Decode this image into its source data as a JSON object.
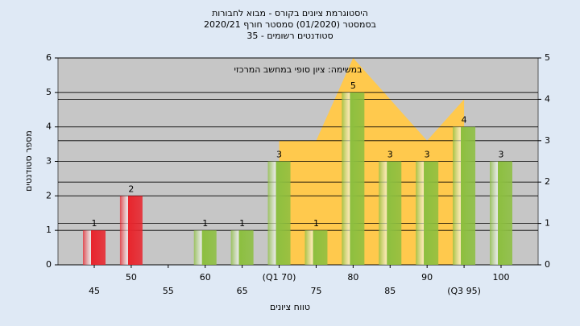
{
  "chart_data": {
    "type": "bar",
    "title": [
      "היסטוגרמת ציונים בקורס - מבוא לחבורות",
      "בסמסטר (01/2020) סמסטר חורף 2020/21",
      "סטודנטים רשומים - 35"
    ],
    "subtitle": "במשימה: ציון סופי במחשב המרכזי",
    "x_label": "טווח ציונים",
    "y_label": "מספר סטודנטים",
    "categories": [
      "45",
      "50",
      "55",
      "60",
      "65",
      "(Q1 70)",
      "75",
      "80",
      "85",
      "90",
      "(Q3 95)",
      "100"
    ],
    "series": [
      {
        "values": [
          1,
          2,
          null,
          1,
          1,
          3,
          1,
          5,
          3,
          3,
          4,
          3
        ],
        "colors": [
          "#e8242c",
          "#e8242c",
          "#8cbf3f",
          "#8cbf3f",
          "#8cbf3f",
          "#8cbf3f",
          "#8cbf3f",
          "#8cbf3f",
          "#8cbf3f",
          "#8cbf3f",
          "#8cbf3f",
          "#8cbf3f"
        ]
      },
      {
        "type": "area",
        "axis": "y2",
        "color": "#ffc94d",
        "values": [
          null,
          null,
          null,
          null,
          null,
          3,
          3,
          5,
          4,
          3,
          4,
          null
        ]
      }
    ],
    "ylim": [
      0,
      6
    ],
    "yticks": [
      0,
      1,
      2,
      3,
      4,
      5,
      6
    ],
    "y2lim": [
      0,
      5
    ],
    "y2ticks": [
      0,
      1,
      2,
      3,
      4,
      5
    ],
    "grid": true
  }
}
